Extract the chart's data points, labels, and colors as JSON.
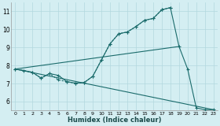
{
  "xlabel": "Humidex (Indice chaleur)",
  "bg_color": "#d4eef2",
  "grid_color": "#b2d8de",
  "line_color": "#1a6b6b",
  "xlim": [
    -0.5,
    23.5
  ],
  "ylim": [
    5.5,
    11.5
  ],
  "xticks": [
    0,
    1,
    2,
    3,
    4,
    5,
    6,
    7,
    8,
    9,
    10,
    11,
    12,
    13,
    14,
    15,
    16,
    17,
    18,
    19,
    20,
    21,
    22,
    23
  ],
  "yticks": [
    6,
    7,
    8,
    9,
    10,
    11
  ],
  "curve1_x": [
    0,
    1,
    2,
    3,
    4,
    5,
    6,
    7,
    8,
    9,
    10,
    11,
    12,
    13,
    14,
    15,
    16,
    17,
    18,
    19,
    20,
    21,
    22,
    23
  ],
  "curve1_y": [
    7.8,
    7.72,
    7.62,
    7.3,
    7.55,
    7.45,
    7.1,
    7.02,
    7.05,
    7.4,
    8.3,
    9.2,
    9.75,
    9.85,
    10.15,
    10.5,
    10.6,
    11.08,
    11.2,
    9.05,
    7.8,
    5.65,
    5.55,
    5.55
  ],
  "curve2_x": [
    0,
    2,
    3,
    4,
    5,
    6,
    7,
    8,
    9,
    10,
    11,
    12,
    13,
    14,
    15,
    16,
    17,
    18
  ],
  "curve2_y": [
    7.8,
    7.62,
    7.3,
    7.55,
    7.2,
    7.1,
    7.02,
    7.05,
    7.4,
    8.3,
    9.2,
    9.75,
    9.85,
    10.15,
    10.5,
    10.6,
    11.08,
    11.2
  ]
}
